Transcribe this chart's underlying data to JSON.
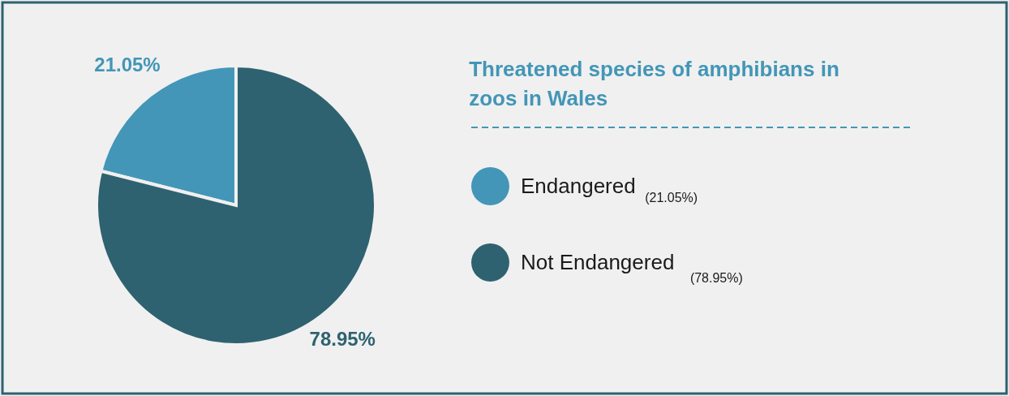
{
  "chart_data": {
    "type": "pie",
    "title": "Threatened species of amphibians in zoos in Wales",
    "categories": [
      "Endangered",
      "Not Endangered"
    ],
    "values": [
      21.05,
      78.95
    ],
    "colors": [
      "#4396b7",
      "#2e6270"
    ],
    "value_labels": [
      "21.05%",
      "78.95%"
    ],
    "annotations": [
      "(21.05%)",
      "(78.95%)"
    ],
    "legend": "right"
  }
}
